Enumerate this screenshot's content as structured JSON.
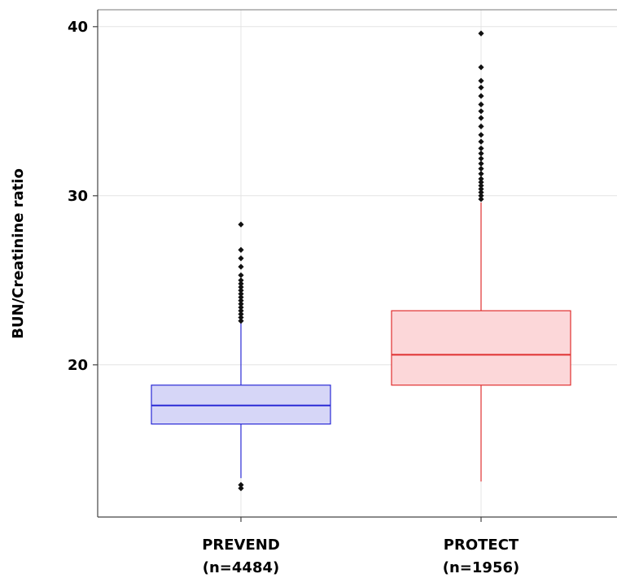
{
  "chart_data": {
    "type": "box",
    "ylabel": "BUN/Creatinine ratio",
    "xlabel": "",
    "ylim": [
      11,
      41
    ],
    "yticks": [
      20,
      30,
      40
    ],
    "grid": true,
    "categories": [
      {
        "name": "PREVEND",
        "n_label": "(n=4484)"
      },
      {
        "name": "PROTECT",
        "n_label": "(n=1956)"
      }
    ],
    "series": [
      {
        "name": "PREVEND",
        "color": "#2a2ad6",
        "fill": "#d6d6f7",
        "whisker_low": 13.3,
        "q1": 16.5,
        "median": 17.6,
        "q3": 18.8,
        "whisker_high": 22.5,
        "outliers": [
          12.9,
          12.7,
          22.6,
          22.8,
          23.0,
          23.2,
          23.4,
          23.6,
          23.8,
          24.0,
          24.2,
          24.4,
          24.6,
          24.8,
          25.0,
          25.3,
          25.8,
          26.3,
          26.8,
          28.3
        ]
      },
      {
        "name": "PROTECT",
        "color": "#e03030",
        "fill": "#fcd7d9",
        "whisker_low": 13.1,
        "q1": 18.8,
        "median": 20.6,
        "q3": 23.2,
        "whisker_high": 29.6,
        "outliers": [
          29.8,
          30.0,
          30.2,
          30.4,
          30.6,
          30.8,
          31.0,
          31.3,
          31.6,
          31.9,
          32.2,
          32.5,
          32.8,
          33.2,
          33.6,
          34.1,
          34.6,
          35.0,
          35.4,
          35.9,
          36.4,
          36.8,
          37.6,
          39.6
        ]
      }
    ]
  }
}
